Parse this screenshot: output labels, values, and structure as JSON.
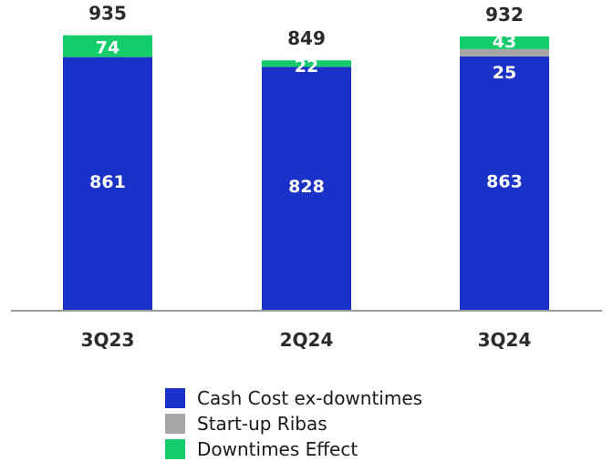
{
  "chart_data": {
    "type": "bar",
    "stacked": true,
    "categories": [
      "3Q23",
      "2Q24",
      "3Q24"
    ],
    "series": [
      {
        "name": "Cash Cost ex-downtimes",
        "color": "#1b32c8",
        "values": [
          861,
          828,
          863
        ]
      },
      {
        "name": "Start-up Ribas",
        "color": "#a6a6a6",
        "values": [
          0,
          0,
          25
        ]
      },
      {
        "name": "Downtimes Effect",
        "color": "#14cc6a",
        "values": [
          74,
          22,
          43
        ]
      }
    ],
    "segment_labels": [
      [
        "861",
        "",
        "74"
      ],
      [
        "828",
        "",
        "22"
      ],
      [
        "863",
        "25",
        "43"
      ]
    ],
    "totals": [
      "935",
      "849",
      "932"
    ],
    "ylim": [
      0,
      1000
    ],
    "grid": false,
    "legend_position": "bottom"
  }
}
